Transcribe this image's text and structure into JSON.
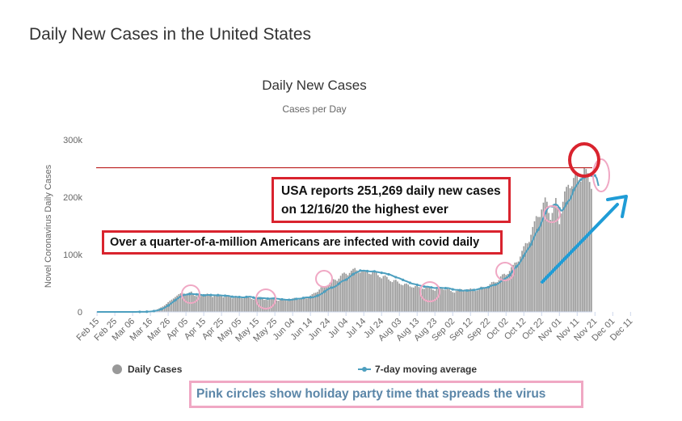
{
  "page_title": "Daily New Cases in the United States",
  "chart_data": {
    "type": "bar",
    "title": "Daily New Cases",
    "subtitle": "Cases per Day",
    "ylabel": "Novel Coronavirus Daily Cases",
    "xlabel": "",
    "ylim": [
      0,
      300000
    ],
    "y_ticks": [
      0,
      100000,
      200000,
      300000
    ],
    "y_tick_labels": [
      "0",
      "100k",
      "200k",
      "300k"
    ],
    "x_tick_labels": [
      "Feb 15",
      "Feb 25",
      "Mar 06",
      "Mar 16",
      "Mar 26",
      "Apr 05",
      "Apr 15",
      "Apr 25",
      "May 05",
      "May 15",
      "May 25",
      "Jun 04",
      "Jun 14",
      "Jun 24",
      "Jul 04",
      "Jul 14",
      "Jul 24",
      "Aug 03",
      "Aug 13",
      "Aug 23",
      "Sep 02",
      "Sep 12",
      "Sep 22",
      "Oct 02",
      "Oct 12",
      "Oct 22",
      "Nov 01",
      "Nov 11",
      "Nov 21",
      "Dec 01",
      "Dec 11"
    ],
    "grid": false,
    "legend_position": "bottom",
    "series": [
      {
        "name": "Daily Cases",
        "kind": "bar",
        "color": "#999999",
        "x_start": "Feb 15",
        "values": [
          0,
          0,
          0,
          0,
          0,
          0,
          0,
          0,
          0,
          0,
          0,
          0,
          0,
          0,
          0,
          0,
          0,
          0,
          0,
          0,
          0,
          0,
          100,
          100,
          200,
          300,
          400,
          500,
          600,
          900,
          1300,
          1800,
          2600,
          3500,
          4700,
          6300,
          7900,
          9500,
          11500,
          14000,
          17000,
          19500,
          21500,
          23500,
          26000,
          28500,
          31000,
          32500,
          33500,
          32000,
          30500,
          32500,
          34000,
          35500,
          30500,
          28000,
          27500,
          31000,
          31500,
          29500,
          28000,
          31000,
          32000,
          30000,
          27500,
          26000,
          28500,
          30000,
          31500,
          29500,
          27500,
          25500,
          27000,
          28500,
          27000,
          25500,
          23500,
          26500,
          28000,
          26000,
          25500,
          24000,
          23500,
          25500,
          27500,
          26500,
          24500,
          22500,
          21500,
          23500,
          25500,
          26500,
          24500,
          22500,
          21000,
          21500,
          20500,
          22500,
          24000,
          23500,
          21500,
          20000,
          19500,
          21500,
          23500,
          22500,
          20500,
          19500,
          20500,
          21500,
          23500,
          24500,
          23000,
          21500,
          22000,
          24500,
          26000,
          25000,
          23500,
          25000,
          28500,
          31000,
          33000,
          33500,
          35000,
          39000,
          43000,
          45000,
          44000,
          43000,
          47000,
          51000,
          55000,
          57000,
          56000,
          54000,
          58000,
          63000,
          67000,
          68500,
          66500,
          64000,
          68000,
          72000,
          75000,
          76500,
          72500,
          68500,
          68500,
          71500,
          73500,
          72500,
          70500,
          66500,
          65500,
          69500,
          71500,
          69000,
          64000,
          60500,
          58500,
          62500,
          63500,
          61000,
          56500,
          53500,
          52000,
          55500,
          56000,
          53000,
          49500,
          47500,
          46500,
          49000,
          49500,
          47500,
          44500,
          43000,
          42500,
          45000,
          45500,
          43500,
          41500,
          40500,
          40000,
          44000,
          44500,
          42500,
          40000,
          38500,
          37000,
          42500,
          45000,
          43500,
          40500,
          39000,
          38500,
          41000,
          39500,
          36500,
          34500,
          33500,
          36500,
          39000,
          40000,
          39500,
          37000,
          36000,
          36000,
          39500,
          41000,
          40000,
          37500,
          36500,
          37500,
          41000,
          44000,
          43500,
          41500,
          41500,
          44000,
          48500,
          52000,
          52500,
          51500,
          52000,
          55500,
          62000,
          65500,
          66500,
          64500,
          66000,
          71500,
          78000,
          82000,
          86000,
          86500,
          88000,
          96500,
          106500,
          114500,
          120000,
          119500,
          122000,
          134500,
          148000,
          158000,
          167000,
          165500,
          165500,
          178500,
          190500,
          199500,
          192000,
          172500,
          160500,
          172500,
          188500,
          198500,
          182500,
          153000,
          171500,
          192000,
          210000,
          218000,
          221500,
          215500,
          219000,
          233500,
          241500,
          243000,
          229500,
          227000,
          236000,
          251269,
          249000,
          242000,
          226500,
          214500
        ]
      },
      {
        "name": "7-day moving average",
        "kind": "line",
        "color": "#4d9fbf",
        "x_start": "Feb 15",
        "values": [
          0,
          0,
          0,
          0,
          0,
          0,
          0,
          0,
          0,
          0,
          0,
          0,
          0,
          0,
          0,
          0,
          0,
          0,
          0,
          0,
          0,
          0,
          71,
          93,
          117,
          143,
          186,
          257,
          371,
          543,
          786,
          1100,
          1514,
          2043,
          2714,
          3557,
          4571,
          5814,
          7314,
          9086,
          11057,
          13243,
          15557,
          17914,
          20357,
          22714,
          25000,
          27000,
          28700,
          29643,
          30143,
          30643,
          31214,
          31643,
          31214,
          30871,
          30571,
          30571,
          30186,
          29486,
          28957,
          28857,
          29500,
          29557,
          29429,
          29286,
          29143,
          29086,
          29071,
          28971,
          28629,
          28386,
          28286,
          28229,
          27943,
          27143,
          26471,
          26200,
          26414,
          26143,
          25986,
          25714,
          25200,
          25500,
          26143,
          26486,
          26571,
          26000,
          25043,
          24157,
          23571,
          23557,
          23886,
          24200,
          24000,
          23643,
          23100,
          23157,
          23500,
          23714,
          23571,
          23157,
          22757,
          22214,
          21943,
          21657,
          21300,
          21129,
          21071,
          21157,
          21500,
          22000,
          22643,
          23071,
          23214,
          23429,
          24271,
          25071,
          25300,
          25371,
          25314,
          25329,
          25986,
          27100,
          28400,
          29771,
          31200,
          33214,
          35429,
          37729,
          39857,
          41500,
          42229,
          42886,
          44500,
          46571,
          49143,
          51857,
          53857,
          54857,
          56100,
          58143,
          60714,
          63229,
          65714,
          67571,
          68900,
          70286,
          71957,
          71814,
          71857,
          71714,
          71129,
          70700,
          70486,
          70757,
          70657,
          69943,
          69414,
          68757,
          68114,
          67857,
          67214,
          66214,
          65500,
          64714,
          63286,
          61914,
          60500,
          59571,
          58671,
          57271,
          55800,
          54500,
          53357,
          52114,
          50671,
          49357,
          48786,
          48143,
          47257,
          46429,
          45671,
          44871,
          44129,
          43986,
          43943,
          43357,
          42714,
          42071,
          41643,
          42071,
          42200,
          42071,
          41843,
          41629,
          41400,
          41643,
          41286,
          40271,
          39329,
          38829,
          38300,
          38357,
          37714,
          37214,
          36929,
          37614,
          37343,
          37214,
          37529,
          37929,
          38286,
          38586,
          39429,
          40429,
          41071,
          41357,
          41829,
          42500,
          43071,
          44571,
          46000,
          46686,
          47471,
          48571,
          50214,
          52843,
          55429,
          57229,
          59243,
          61071,
          63857,
          67957,
          72400,
          76214,
          79429,
          82371,
          87100,
          92457,
          97914,
          103286,
          108071,
          112214,
          117643,
          125029,
          132086,
          138214,
          143100,
          148286,
          156929,
          164300,
          172000,
          178600,
          182957,
          184057,
          184100,
          186700,
          187500,
          185671,
          180671,
          176357,
          177671,
          182557,
          189071,
          193343,
          195900,
          203371,
          212357,
          217357,
          222500,
          226700,
          230600,
          233286,
          233171,
          236643,
          237400,
          238843,
          236857,
          236829,
          237829,
          232929,
          219700
        ]
      }
    ],
    "annotations": {
      "record_line_value": 251269,
      "record_line_color": "#b30000"
    }
  },
  "annotations": {
    "record_text": "USA reports 251,269 daily new cases on 12/16/20 the highest ever",
    "quarter_text": "Over a quarter-of-a-million Americans are infected with covid daily",
    "pink_note": "Pink circles show holiday party time that spreads the virus"
  },
  "colors": {
    "highlight_red": "#d9232e",
    "pink": "#f0a8c4",
    "arrow_blue": "#1f9cd6"
  }
}
